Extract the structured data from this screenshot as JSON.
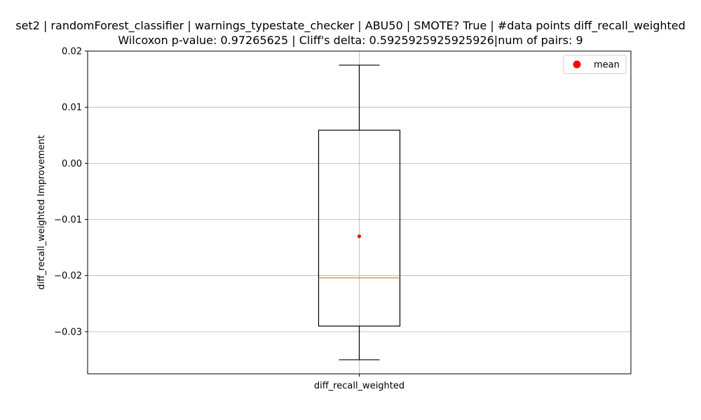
{
  "chart_data": {
    "type": "box",
    "title_line1": "set2 | randomForest_classifier | warnings_typestate_checker | ABU50 | SMOTE? True | #data points diff_recall_weighted",
    "title_line2": "Wilcoxon p-value: 0.97265625 | Cliff's delta: 0.5925925925925926|num of pairs: 9",
    "xlabel": "",
    "ylabel": "diff_recall_weighted Improvement",
    "categories": [
      "diff_recall_weighted"
    ],
    "ylim": [
      -0.0375,
      0.02
    ],
    "yticks": [
      0.02,
      0.01,
      0.0,
      -0.01,
      -0.02,
      -0.03
    ],
    "ytick_labels": [
      "0.02",
      "0.01",
      "0.00",
      "−0.01",
      "−0.02",
      "−0.03"
    ],
    "grid": true,
    "box": {
      "whisker_low": -0.035,
      "q1": -0.029,
      "median": -0.0204,
      "q3": 0.0059,
      "whisker_high": 0.0175,
      "mean": -0.013
    },
    "legend": {
      "position": "top-right",
      "entries": [
        {
          "label": "mean",
          "color": "#ff0000"
        }
      ]
    },
    "colors": {
      "box": "#000000",
      "median": "#ff7f0e",
      "mean": "#ff0000",
      "grid": "#b0b0b0"
    }
  }
}
